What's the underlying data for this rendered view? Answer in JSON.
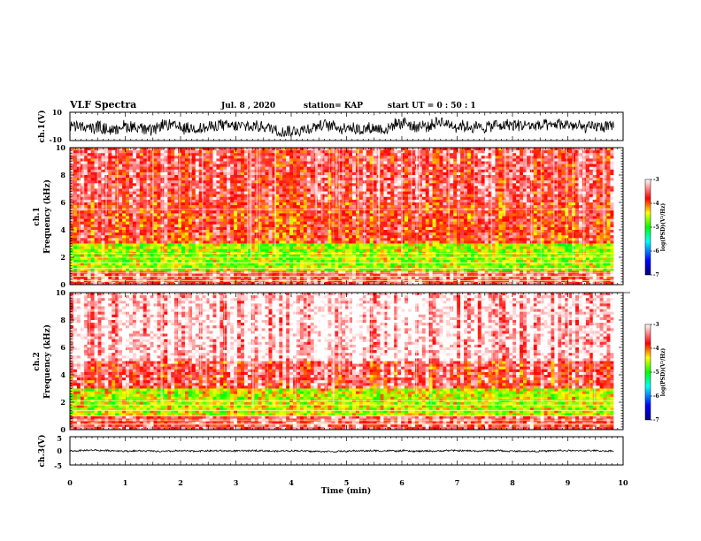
{
  "header": {
    "title": "VLF Spectra",
    "date": "Jul. 8 , 2020",
    "station": "station= KAP",
    "start": "start UT = 0 : 50 : 1"
  },
  "chart_data": [
    {
      "id": "ch1-waveform",
      "type": "line",
      "ylabel": "ch.1(V)",
      "ylim": [
        -10,
        10
      ],
      "yticks": [
        "10",
        "-10"
      ],
      "xlim": [
        0,
        10
      ],
      "x_extent": [
        0,
        9.83
      ],
      "approx_level": 0,
      "approx_range": [
        -7,
        8
      ],
      "color": "#000000"
    },
    {
      "id": "ch1-spectrogram",
      "type": "heatmap",
      "ylabel": "ch.1\nFrequency (kHz)",
      "ylim": [
        0,
        10
      ],
      "yticks": [
        "0",
        "2",
        "4",
        "6",
        "8",
        "10"
      ],
      "xlim": [
        0,
        10
      ],
      "x_extent": [
        0,
        9.83
      ],
      "colorbar": {
        "label": "log(PSD)(V²/Hz)",
        "range": [
          -7,
          -3
        ],
        "ticks": [
          "-3",
          "-4",
          "-5",
          "-6",
          "-7"
        ]
      },
      "intensity_profile": {
        "below_1kHz": -3.5,
        "1_to_3kHz": -4.6,
        "3_to_6kHz": -3.8,
        "6_to_10kHz": -3.6
      },
      "horizontal_lines_kHz": [
        0.3,
        0.6,
        0.9,
        1.2,
        1.6,
        2.0,
        2.3,
        5.5
      ]
    },
    {
      "id": "ch2-spectrogram",
      "type": "heatmap",
      "ylabel": "ch.2\nFrequency (kHz)",
      "ylim": [
        0,
        10
      ],
      "yticks": [
        "0",
        "2",
        "4",
        "6",
        "8",
        "10"
      ],
      "xlim": [
        0,
        10
      ],
      "x_extent": [
        0,
        9.83
      ],
      "colorbar": {
        "label": "log(PSD)(V²/Hz)",
        "range": [
          -7,
          -3
        ],
        "ticks": [
          "-3",
          "-4",
          "-5",
          "-6",
          "-7"
        ]
      },
      "intensity_profile": {
        "below_1kHz": -3.5,
        "1_to_3kHz": -4.5,
        "3_to_5kHz": -3.6,
        "5_to_10kHz": -3.1
      },
      "horizontal_lines_kHz": [
        0.4,
        0.7,
        1.0,
        1.4,
        1.8,
        2.1
      ]
    },
    {
      "id": "ch3-waveform",
      "type": "line",
      "ylabel": "ch.3(V)",
      "ylim": [
        -5,
        5
      ],
      "yticks": [
        "5",
        "0",
        "-5"
      ],
      "xlim": [
        0,
        10
      ],
      "x_extent": [
        0,
        9.83
      ],
      "approx_level": 0,
      "approx_range": [
        -0.5,
        0.5
      ],
      "color": "#000000"
    }
  ],
  "xaxis": {
    "label": "Time (min)",
    "ticks": [
      "0",
      "1",
      "2",
      "3",
      "4",
      "5",
      "6",
      "7",
      "8",
      "9",
      "10"
    ]
  },
  "colors": {
    "colormap": [
      "#0000a0",
      "#0000ff",
      "#00ff00",
      "#ffff00",
      "#ff0000",
      "#ffffff"
    ]
  }
}
